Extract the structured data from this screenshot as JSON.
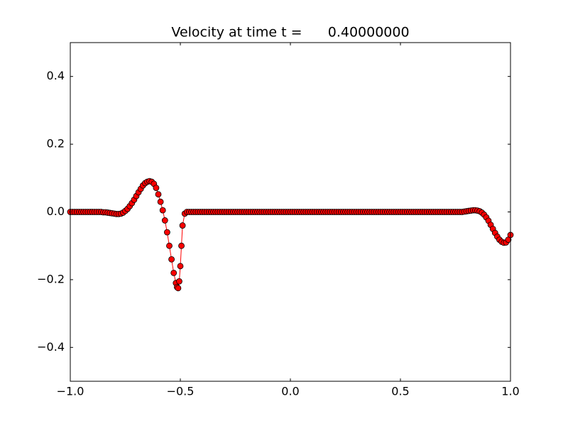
{
  "chart_data": {
    "type": "line",
    "title": "Velocity at time t =      0.40000000",
    "x": [
      -1,
      -0.99,
      -0.98,
      -0.97,
      -0.96,
      -0.95,
      -0.94,
      -0.93,
      -0.92,
      -0.91,
      -0.9,
      -0.89,
      -0.88,
      -0.87,
      -0.86,
      -0.85,
      -0.84,
      -0.83,
      -0.82,
      -0.81,
      -0.8,
      -0.79,
      -0.78,
      -0.77,
      -0.76,
      -0.75,
      -0.74,
      -0.73,
      -0.72,
      -0.71,
      -0.7,
      -0.69,
      -0.68,
      -0.67,
      -0.66,
      -0.65,
      -0.64,
      -0.63,
      -0.62,
      -0.61,
      -0.6,
      -0.59,
      -0.58,
      -0.57,
      -0.56,
      -0.55,
      -0.54,
      -0.53,
      -0.52,
      -0.515,
      -0.51,
      -0.505,
      -0.5,
      -0.495,
      -0.49,
      -0.48,
      -0.47,
      -0.46,
      -0.45,
      -0.44,
      -0.43,
      -0.42,
      -0.41,
      -0.4,
      -0.39,
      -0.38,
      -0.37,
      -0.36,
      -0.35,
      -0.34,
      -0.33,
      -0.32,
      -0.31,
      -0.3,
      -0.29,
      -0.28,
      -0.27,
      -0.26,
      -0.25,
      -0.24,
      -0.23,
      -0.22,
      -0.21,
      -0.2,
      -0.19,
      -0.18,
      -0.17,
      -0.16,
      -0.15,
      -0.14,
      -0.13,
      -0.12,
      -0.11,
      -0.1,
      -0.09,
      -0.08,
      -0.07,
      -0.06,
      -0.05,
      -0.04,
      -0.03,
      -0.02,
      -0.01,
      0,
      0.01,
      0.02,
      0.03,
      0.04,
      0.05,
      0.06,
      0.07,
      0.08,
      0.09,
      0.1,
      0.11,
      0.12,
      0.13,
      0.14,
      0.15,
      0.16,
      0.17,
      0.18,
      0.19,
      0.2,
      0.21,
      0.22,
      0.23,
      0.24,
      0.25,
      0.26,
      0.27,
      0.28,
      0.29,
      0.3,
      0.31,
      0.32,
      0.33,
      0.34,
      0.35,
      0.36,
      0.37,
      0.38,
      0.39,
      0.4,
      0.41,
      0.42,
      0.43,
      0.44,
      0.45,
      0.46,
      0.47,
      0.48,
      0.49,
      0.5,
      0.51,
      0.52,
      0.53,
      0.54,
      0.55,
      0.56,
      0.57,
      0.58,
      0.59,
      0.6,
      0.61,
      0.62,
      0.63,
      0.64,
      0.65,
      0.66,
      0.67,
      0.68,
      0.69,
      0.7,
      0.71,
      0.72,
      0.73,
      0.74,
      0.75,
      0.76,
      0.77,
      0.78,
      0.79,
      0.8,
      0.81,
      0.82,
      0.83,
      0.84,
      0.85,
      0.86,
      0.87,
      0.88,
      0.89,
      0.9,
      0.91,
      0.92,
      0.93,
      0.94,
      0.95,
      0.96,
      0.97,
      0.98,
      0.99,
      1
    ],
    "series": [
      {
        "color": "#ff0000",
        "values": [
          0,
          0,
          0,
          0,
          0,
          0,
          0,
          0,
          0,
          0,
          0,
          0,
          0,
          0,
          0,
          -0.001,
          -0.001,
          -0.002,
          -0.003,
          -0.004,
          -0.005,
          -0.006,
          -0.006,
          -0.005,
          -0.002,
          0.003,
          0.009,
          0.017,
          0.026,
          0.036,
          0.047,
          0.058,
          0.068,
          0.078,
          0.085,
          0.089,
          0.091,
          0.089,
          0.083,
          0.071,
          0.052,
          0.03,
          0.005,
          -0.025,
          -0.06,
          -0.1,
          -0.14,
          -0.18,
          -0.21,
          -0.222,
          -0.225,
          -0.205,
          -0.16,
          -0.1,
          -0.04,
          -0.005,
          0,
          0,
          0,
          0,
          0,
          0,
          0,
          0,
          0,
          0,
          0,
          0,
          0,
          0,
          0,
          0,
          0,
          0,
          0,
          0,
          0,
          0,
          0,
          0,
          0,
          0,
          0,
          0,
          0,
          0,
          0,
          0,
          0,
          0,
          0,
          0,
          0,
          0,
          0,
          0,
          0,
          0,
          0,
          0,
          0,
          0,
          0,
          0,
          0,
          0,
          0,
          0,
          0,
          0,
          0,
          0,
          0,
          0,
          0,
          0,
          0,
          0,
          0,
          0,
          0,
          0,
          0,
          0,
          0,
          0,
          0,
          0,
          0,
          0,
          0,
          0,
          0,
          0,
          0,
          0,
          0,
          0,
          0,
          0,
          0,
          0,
          0,
          0,
          0,
          0,
          0,
          0,
          0,
          0,
          0,
          0,
          0,
          0,
          0,
          0,
          0,
          0,
          0,
          0,
          0,
          0,
          0,
          0,
          0,
          0,
          0,
          0,
          0,
          0,
          0,
          0,
          0,
          0,
          0,
          0,
          0,
          0,
          0,
          0,
          0,
          0,
          0.001,
          0.002,
          0.003,
          0.004,
          0.005,
          0.005,
          0.004,
          0.002,
          -0.002,
          -0.008,
          -0.016,
          -0.026,
          -0.038,
          -0.05,
          -0.062,
          -0.073,
          -0.082,
          -0.088,
          -0.091,
          -0.09,
          -0.082,
          -0.068
        ]
      }
    ],
    "xlim": [
      -1,
      1
    ],
    "xticks": [
      {
        "value": -1,
        "label": "−1.0"
      },
      {
        "value": -0.5,
        "label": "−0.5"
      },
      {
        "value": 0,
        "label": "0.0"
      },
      0.5,
      {
        "value": 1,
        "label": "1.0"
      }
    ],
    "ylim": [
      -0.5,
      0.5
    ],
    "yticks": [
      {
        "value": -0.4,
        "label": "−0.4"
      },
      {
        "value": -0.2,
        "label": "−0.2"
      },
      {
        "value": 0,
        "label": "0.0"
      },
      0.2,
      0.4
    ],
    "marker_edge": "#000000"
  }
}
